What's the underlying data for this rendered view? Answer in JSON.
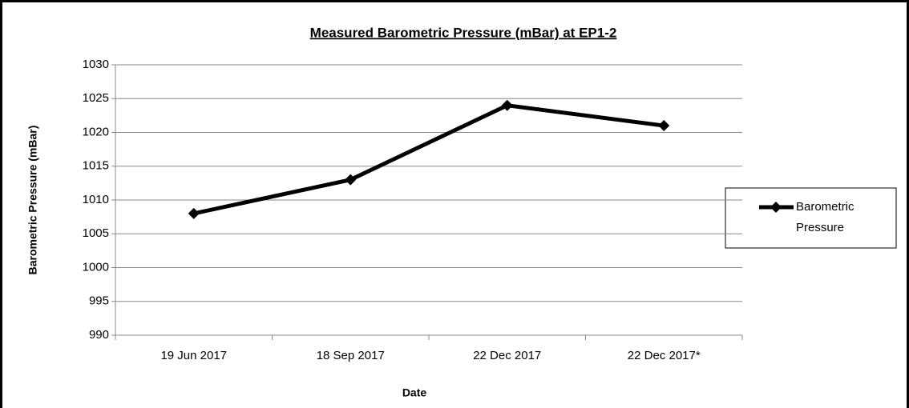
{
  "chart_data": {
    "type": "line",
    "title": "Measured Barometric Pressure (mBar) at EP1-2",
    "x_label": "Date",
    "y_label": "Barometric Pressure (mBar)",
    "categories": [
      "19 Jun 2017",
      "18 Sep 2017",
      "22 Dec 2017",
      "22 Dec 2017*"
    ],
    "series": [
      {
        "name": "Barometric Pressure",
        "color": "#000000",
        "values": [
          1008,
          1013,
          1024,
          1021
        ]
      }
    ],
    "ylim": [
      990,
      1030
    ],
    "yticks": [
      990,
      995,
      1000,
      1005,
      1010,
      1015,
      1020,
      1025,
      1030
    ],
    "grid": true,
    "legend": "right"
  }
}
